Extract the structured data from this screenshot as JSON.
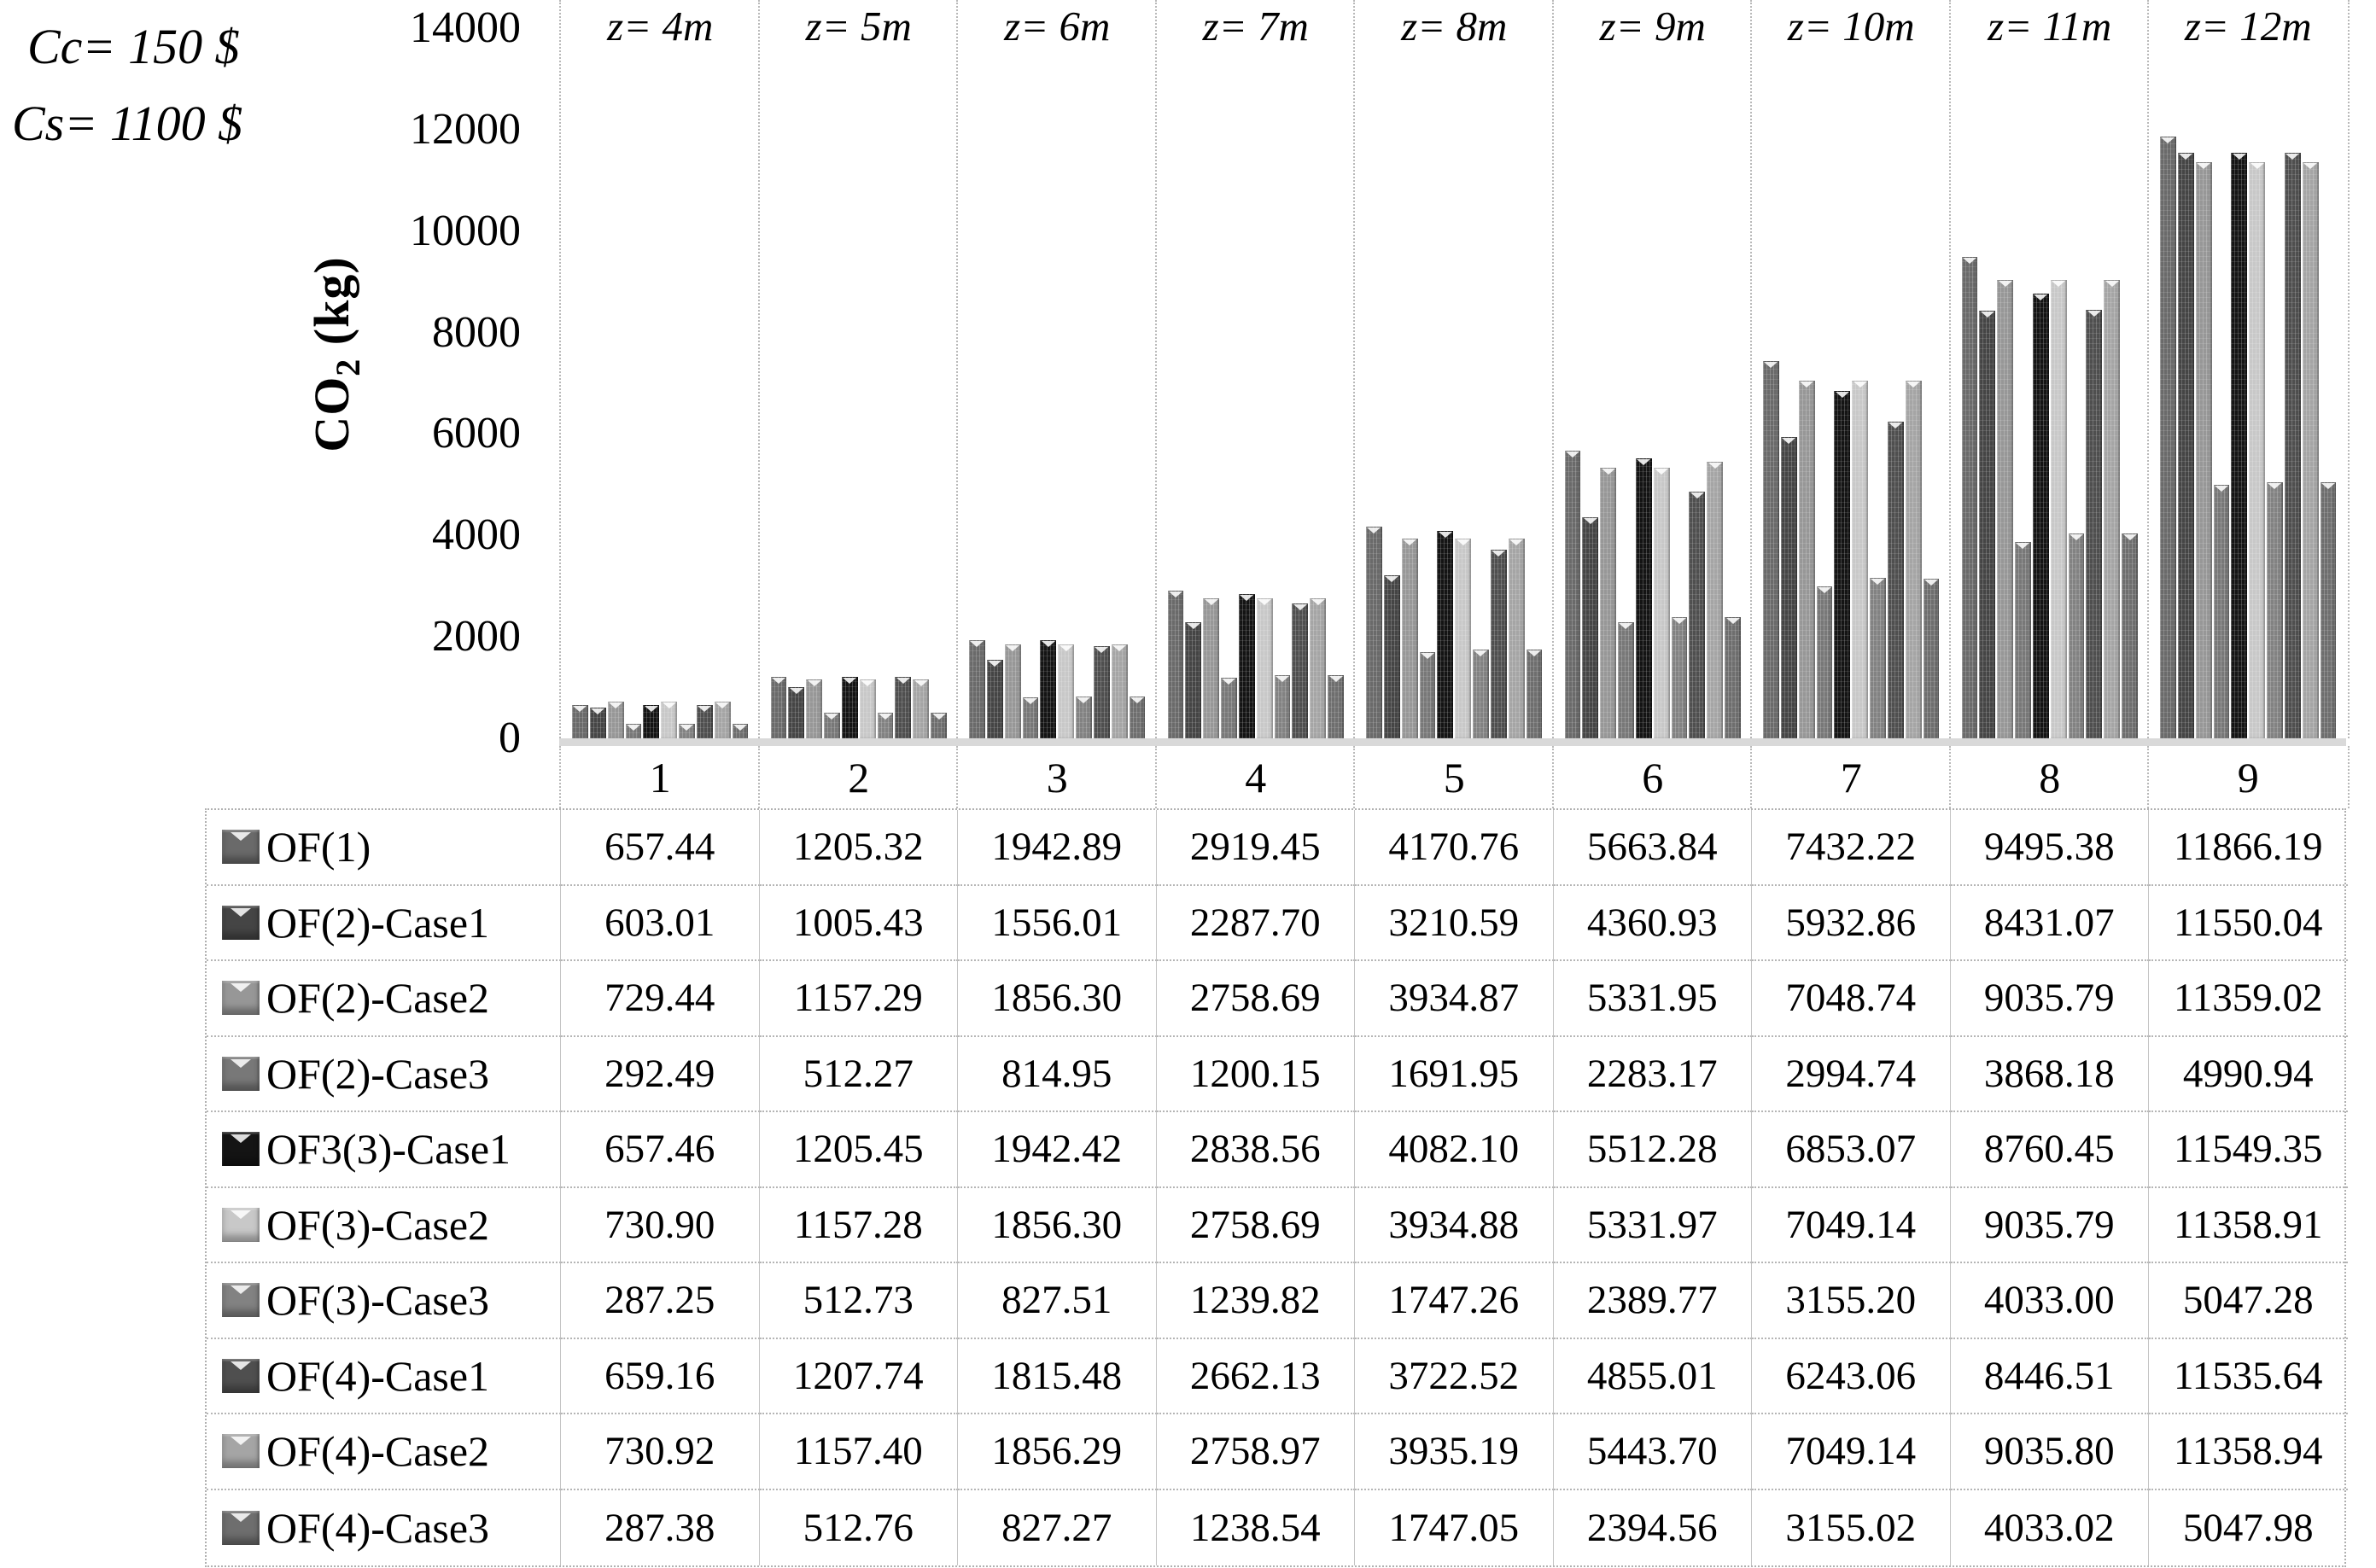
{
  "annotation": {
    "lines": [
      "Cc= 150 $",
      "Cs= 1100 $"
    ]
  },
  "y_axis": {
    "title_base": "CO",
    "title_sub": "2",
    "title_unit": " (kg)",
    "ticks": [
      "14000",
      "12000",
      "10000",
      "8000",
      "6000",
      "4000",
      "2000",
      "0"
    ],
    "max": 14000
  },
  "chart_data": {
    "type": "bar",
    "title": "",
    "xlabel": "",
    "ylabel": "CO2 (kg)",
    "ylim": [
      0,
      14000
    ],
    "grid": "vertical dotted separators between category groups",
    "legend_position": "left column of data table below chart",
    "categories": [
      "1",
      "2",
      "3",
      "4",
      "5",
      "6",
      "7",
      "8",
      "9"
    ],
    "group_headers": [
      "z= 4m",
      "z= 5m",
      "z= 6m",
      "z= 7m",
      "z= 8m",
      "z= 9m",
      "z= 10m",
      "z= 11m",
      "z= 12m"
    ],
    "series": [
      {
        "name": "OF(1)",
        "color": "#6a6a6a",
        "values": [
          "657.44",
          "1205.32",
          "1942.89",
          "2919.45",
          "4170.76",
          "5663.84",
          "7432.22",
          "9495.38",
          "11866.19"
        ]
      },
      {
        "name": "OF(2)-Case1",
        "color": "#454545",
        "values": [
          "603.01",
          "1005.43",
          "1556.01",
          "2287.70",
          "3210.59",
          "4360.93",
          "5932.86",
          "8431.07",
          "11550.04"
        ]
      },
      {
        "name": "OF(2)-Case2",
        "color": "#979797",
        "values": [
          "729.44",
          "1157.29",
          "1856.30",
          "2758.69",
          "3934.87",
          "5331.95",
          "7048.74",
          "9035.79",
          "11359.02"
        ]
      },
      {
        "name": "OF(2)-Case3",
        "color": "#787878",
        "values": [
          "292.49",
          "512.27",
          "814.95",
          "1200.15",
          "1691.95",
          "2283.17",
          "2994.74",
          "3868.18",
          "4990.94"
        ]
      },
      {
        "name": "OF3(3)-Case1",
        "color": "#141414",
        "values": [
          "657.46",
          "1205.45",
          "1942.42",
          "2838.56",
          "4082.10",
          "5512.28",
          "6853.07",
          "8760.45",
          "11549.35"
        ]
      },
      {
        "name": "OF(3)-Case2",
        "color": "#c8c8c8",
        "values": [
          "730.90",
          "1157.28",
          "1856.30",
          "2758.69",
          "3934.88",
          "5331.97",
          "7049.14",
          "9035.79",
          "11358.91"
        ]
      },
      {
        "name": "OF(3)-Case3",
        "color": "#828282",
        "values": [
          "287.25",
          "512.73",
          "827.51",
          "1239.82",
          "1747.26",
          "2389.77",
          "3155.20",
          "4033.00",
          "5047.28"
        ]
      },
      {
        "name": "OF(4)-Case1",
        "color": "#4f4f4f",
        "values": [
          "659.16",
          "1207.74",
          "1815.48",
          "2662.13",
          "3722.52",
          "4855.01",
          "6243.06",
          "8446.51",
          "11535.64"
        ]
      },
      {
        "name": "OF(4)-Case2",
        "color": "#a5a5a5",
        "values": [
          "730.92",
          "1157.40",
          "1856.29",
          "2758.97",
          "3935.19",
          "5443.70",
          "7049.14",
          "9035.80",
          "11358.94"
        ]
      },
      {
        "name": "OF(4)-Case3",
        "color": "#6e6e6e",
        "values": [
          "287.38",
          "512.76",
          "827.27",
          "1238.54",
          "1747.05",
          "2394.56",
          "3155.02",
          "4033.02",
          "5047.98"
        ]
      }
    ]
  }
}
